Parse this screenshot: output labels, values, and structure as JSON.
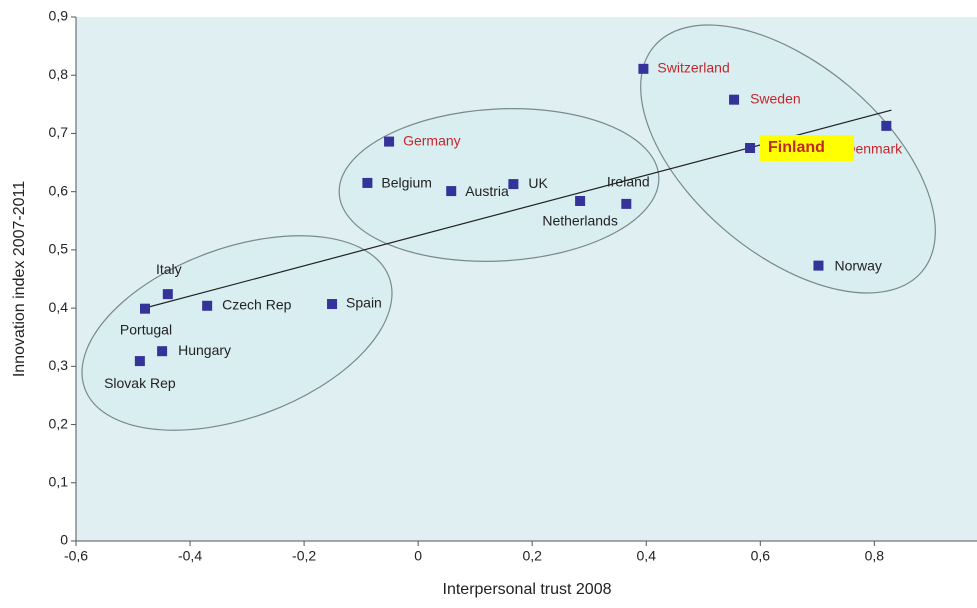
{
  "chart_data": {
    "type": "scatter",
    "xlabel": "Interpersonal trust 2008",
    "ylabel": "Innovation index 2007-2011",
    "labels": [
      "Switzerland",
      "Sweden",
      "Denmark",
      "Finland",
      "Norway",
      "Germany",
      "Belgium",
      "Austria",
      "UK",
      "Netherlands",
      "Ireland",
      "Italy",
      "Portugal",
      "Czech Rep",
      "Spain",
      "Hungary",
      "Slovak Rep"
    ],
    "x": [
      0.395,
      0.554,
      0.821,
      0.582,
      0.702,
      -0.051,
      -0.089,
      0.058,
      0.167,
      0.284,
      0.365,
      -0.439,
      -0.479,
      -0.37,
      -0.151,
      -0.449,
      -0.488
    ],
    "y": [
      0.811,
      0.758,
      0.713,
      0.675,
      0.473,
      0.686,
      0.615,
      0.601,
      0.613,
      0.584,
      0.579,
      0.424,
      0.399,
      0.404,
      0.407,
      0.326,
      0.309
    ],
    "label_colors": [
      "#c0282d",
      "#c0282d",
      "#c0282d",
      "#c0282d",
      "#222222",
      "#c0282d",
      "#222222",
      "#222222",
      "#222222",
      "#222222",
      "#222222",
      "#222222",
      "#222222",
      "#222222",
      "#222222",
      "#222222",
      "#222222"
    ],
    "highlight_index": 3,
    "highlight_color": "#ffff00",
    "marker_color": "#333399",
    "trendline": {
      "x": [
        -0.48,
        0.83
      ],
      "y": [
        0.4,
        0.74
      ]
    },
    "xlim": [
      -0.6,
      0.98
    ],
    "ylim": [
      0,
      0.9
    ],
    "xticks": [
      {
        "value": -0.6,
        "label": "-0,6"
      },
      {
        "value": -0.4,
        "label": "-0,4"
      },
      {
        "value": -0.2,
        "label": "-0,2"
      },
      0,
      {
        "value": 0.2,
        "label": "0,2"
      },
      {
        "value": 0.4,
        "label": "0,4"
      },
      {
        "value": 0.6,
        "label": "0,6"
      },
      {
        "value": 0.8,
        "label": "0,8"
      }
    ],
    "yticks": [
      0,
      {
        "value": 0.1,
        "label": "0,1"
      },
      {
        "value": 0.2,
        "label": "0,2"
      },
      {
        "value": 0.3,
        "label": "0,3"
      },
      {
        "value": 0.4,
        "label": "0,4"
      },
      {
        "value": 0.5,
        "label": "0,5"
      },
      {
        "value": 0.6,
        "label": "0,6"
      },
      {
        "value": 0.7,
        "label": "0,7"
      },
      {
        "value": 0.8,
        "label": "0,8"
      },
      {
        "value": 0.9,
        "label": "0,9"
      }
    ]
  }
}
